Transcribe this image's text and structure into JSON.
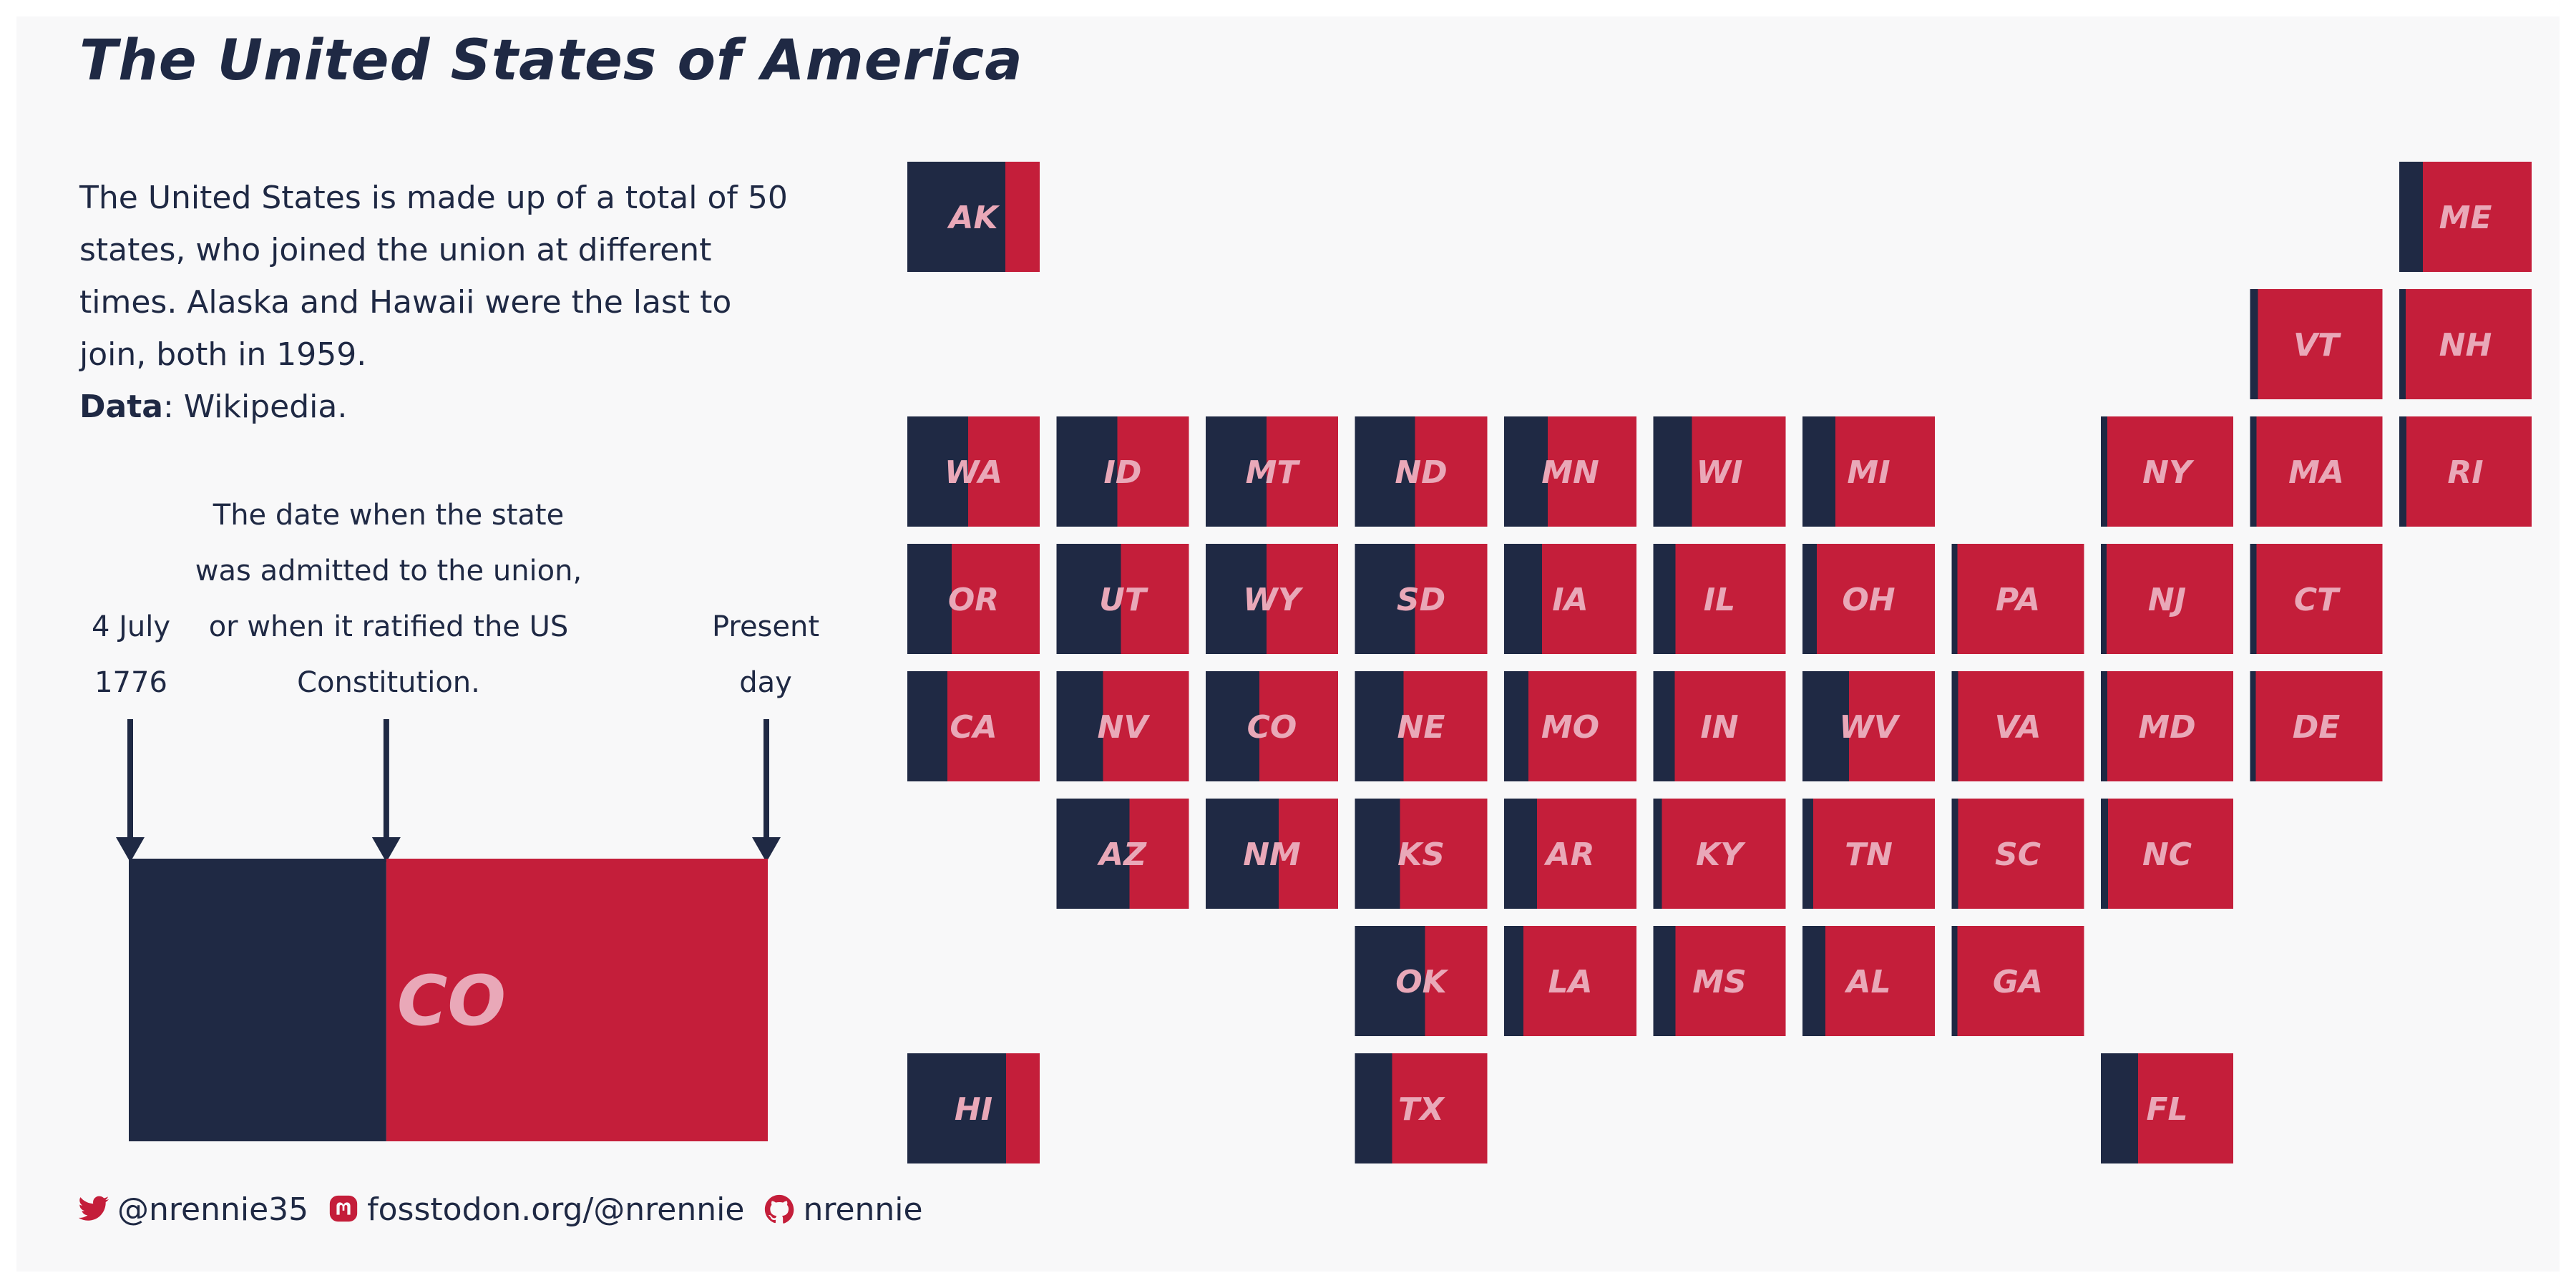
{
  "title": "The United States of America",
  "description": {
    "text": "The United States is made up of a total of 50 states, who joined the union at different times. Alaska and Hawaii were the last to join, both in 1959.",
    "data_label": "Data",
    "data_source": ": Wikipedia."
  },
  "legend": {
    "start_label_line1": "4 July",
    "start_label_line2": "1776",
    "middle_label_lines": [
      "The date when the state",
      "was admitted to the union,",
      "or when it ratified the US",
      "Constitution."
    ],
    "end_label_line1": "Present",
    "end_label_line2": "day",
    "example_state": "CO",
    "example_fraction": 0.403
  },
  "colors": {
    "navy": "#1f2944",
    "red": "#c41e3a",
    "label": "#e9a8b8",
    "background": "#f8f8f9"
  },
  "credits": {
    "twitter": "@nrennie35",
    "mastodon": "fosstodon.org/@nrennie",
    "github": "nrennie",
    "twitter_icon": "twitter-icon",
    "mastodon_icon": "mastodon-icon",
    "github_icon": "github-icon"
  },
  "chart_data": {
    "type": "heatmap",
    "title": "The United States of America",
    "value_meaning": "fraction of the time between 4 July 1776 and present day that had elapsed when the state joined the union",
    "tiles": [
      {
        "state": "AK",
        "col": 0,
        "row": 0,
        "fraction": 0.743
      },
      {
        "state": "ME",
        "col": 10,
        "row": 0,
        "fraction": 0.177
      },
      {
        "state": "VT",
        "col": 9,
        "row": 1,
        "fraction": 0.06
      },
      {
        "state": "NH",
        "col": 10,
        "row": 1,
        "fraction": 0.049
      },
      {
        "state": "WA",
        "col": 0,
        "row": 2,
        "fraction": 0.458
      },
      {
        "state": "ID",
        "col": 1,
        "row": 2,
        "fraction": 0.46
      },
      {
        "state": "MT",
        "col": 2,
        "row": 2,
        "fraction": 0.457
      },
      {
        "state": "ND",
        "col": 3,
        "row": 2,
        "fraction": 0.456
      },
      {
        "state": "MN",
        "col": 4,
        "row": 2,
        "fraction": 0.331
      },
      {
        "state": "WI",
        "col": 5,
        "row": 2,
        "fraction": 0.29
      },
      {
        "state": "MI",
        "col": 6,
        "row": 2,
        "fraction": 0.247
      },
      {
        "state": "NY",
        "col": 8,
        "row": 2,
        "fraction": 0.048
      },
      {
        "state": "MA",
        "col": 9,
        "row": 2,
        "fraction": 0.048
      },
      {
        "state": "RI",
        "col": 10,
        "row": 2,
        "fraction": 0.056
      },
      {
        "state": "OR",
        "col": 0,
        "row": 3,
        "fraction": 0.334
      },
      {
        "state": "UT",
        "col": 1,
        "row": 3,
        "fraction": 0.485
      },
      {
        "state": "WY",
        "col": 2,
        "row": 3,
        "fraction": 0.46
      },
      {
        "state": "SD",
        "col": 3,
        "row": 3,
        "fraction": 0.456
      },
      {
        "state": "IA",
        "col": 4,
        "row": 3,
        "fraction": 0.285
      },
      {
        "state": "IL",
        "col": 5,
        "row": 3,
        "fraction": 0.168
      },
      {
        "state": "OH",
        "col": 6,
        "row": 3,
        "fraction": 0.11
      },
      {
        "state": "PA",
        "col": 7,
        "row": 3,
        "fraction": 0.043
      },
      {
        "state": "NJ",
        "col": 8,
        "row": 3,
        "fraction": 0.043
      },
      {
        "state": "CT",
        "col": 9,
        "row": 3,
        "fraction": 0.046
      },
      {
        "state": "CA",
        "col": 0,
        "row": 4,
        "fraction": 0.3
      },
      {
        "state": "NV",
        "col": 1,
        "row": 4,
        "fraction": 0.354
      },
      {
        "state": "CO",
        "col": 2,
        "row": 4,
        "fraction": 0.403
      },
      {
        "state": "NE",
        "col": 3,
        "row": 4,
        "fraction": 0.369
      },
      {
        "state": "MO",
        "col": 4,
        "row": 4,
        "fraction": 0.183
      },
      {
        "state": "IN",
        "col": 5,
        "row": 4,
        "fraction": 0.161
      },
      {
        "state": "WV",
        "col": 6,
        "row": 4,
        "fraction": 0.351
      },
      {
        "state": "VA",
        "col": 7,
        "row": 4,
        "fraction": 0.049
      },
      {
        "state": "MD",
        "col": 8,
        "row": 4,
        "fraction": 0.047
      },
      {
        "state": "DE",
        "col": 9,
        "row": 4,
        "fraction": 0.043
      },
      {
        "state": "AZ",
        "col": 1,
        "row": 5,
        "fraction": 0.552
      },
      {
        "state": "NM",
        "col": 2,
        "row": 5,
        "fraction": 0.552
      },
      {
        "state": "KS",
        "col": 3,
        "row": 5,
        "fraction": 0.343
      },
      {
        "state": "AR",
        "col": 4,
        "row": 5,
        "fraction": 0.248
      },
      {
        "state": "KY",
        "col": 5,
        "row": 5,
        "fraction": 0.065
      },
      {
        "state": "TN",
        "col": 6,
        "row": 5,
        "fraction": 0.08
      },
      {
        "state": "SC",
        "col": 7,
        "row": 5,
        "fraction": 0.047
      },
      {
        "state": "NC",
        "col": 8,
        "row": 5,
        "fraction": 0.052
      },
      {
        "state": "OK",
        "col": 3,
        "row": 6,
        "fraction": 0.529
      },
      {
        "state": "LA",
        "col": 4,
        "row": 6,
        "fraction": 0.145
      },
      {
        "state": "MS",
        "col": 5,
        "row": 6,
        "fraction": 0.166
      },
      {
        "state": "AL",
        "col": 6,
        "row": 6,
        "fraction": 0.173
      },
      {
        "state": "GA",
        "col": 7,
        "row": 6,
        "fraction": 0.043
      },
      {
        "state": "HI",
        "col": 0,
        "row": 7,
        "fraction": 0.744
      },
      {
        "state": "TX",
        "col": 3,
        "row": 7,
        "fraction": 0.283
      },
      {
        "state": "FL",
        "col": 8,
        "row": 7,
        "fraction": 0.279
      }
    ]
  }
}
